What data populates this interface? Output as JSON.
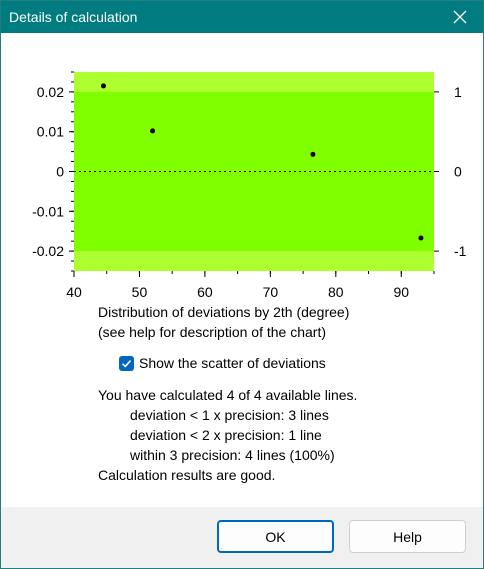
{
  "window": {
    "title": "Details of calculation"
  },
  "chart_data": {
    "type": "scatter",
    "x": [
      44.5,
      52,
      76.5,
      93
    ],
    "y": [
      0.0215,
      0.0102,
      0.0043,
      -0.0167
    ],
    "xlim": [
      40,
      95
    ],
    "ylim": [
      -0.025,
      0.025
    ],
    "y2lim": [
      -1.25,
      1.25
    ],
    "xticks": [
      40,
      50,
      60,
      70,
      80,
      90
    ],
    "yticks": [
      0.02,
      0.01,
      0,
      -0.01,
      -0.02
    ],
    "y2ticks": [
      1,
      0,
      -1
    ],
    "xtick_labels": [
      "40",
      "50",
      "60",
      "70",
      "80",
      "90"
    ],
    "ytick_labels": [
      "0.02",
      "0.01",
      "0",
      "-0.01",
      "-0.02"
    ],
    "y2tick_labels": [
      "1",
      "0",
      "-1"
    ],
    "precision_band": [
      -0.02,
      0.02
    ],
    "colors": {
      "inner": "#7fff00",
      "outer": "#adff2f",
      "points": "#000000"
    },
    "zero_line": "dotted",
    "xlabel": "",
    "ylabel": "",
    "title": ""
  },
  "caption": {
    "line1": "Distribution of deviations by 2th (degree)",
    "line2": "(see help for description of the chart)"
  },
  "scatter_option": {
    "label": "Show the scatter of deviations",
    "checked": true
  },
  "summary": {
    "line1": "You have calculated 4 of 4 available lines.",
    "line2": "deviation < 1 x precision:   3 lines",
    "line3": "deviation < 2 x precision:   1 line",
    "line4": "within 3 precision:  4 lines (100%)",
    "line5": "Calculation results are good."
  },
  "buttons": {
    "ok": "OK",
    "help": "Help"
  }
}
